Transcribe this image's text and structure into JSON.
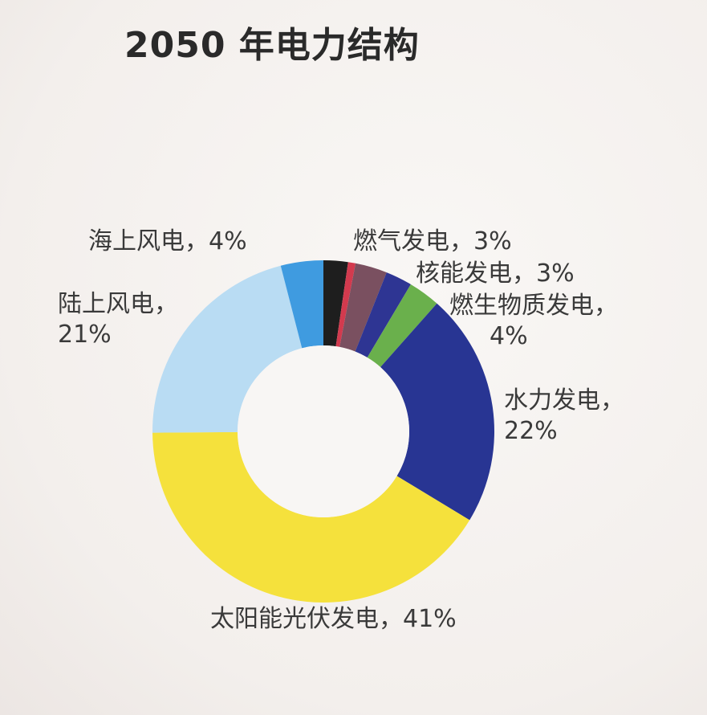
{
  "chart_data": {
    "type": "pie",
    "title": "2050 年电力结构",
    "slices": [
      {
        "key": "gas",
        "name": "燃气发电",
        "value": 3,
        "label_line1": "燃气发电，3%",
        "label_line2": "",
        "color": "#d23a4e"
      },
      {
        "key": "nuclear",
        "name": "核能发电",
        "value": 3,
        "label_line1": "核能发电，3%",
        "label_line2": "",
        "color": "#7a5060"
      },
      {
        "key": "biomass",
        "name": "燃生物质发电",
        "value": 4,
        "label_line1": "燃生物质发电，",
        "label_line2": "4%",
        "color": "#2e3593"
      },
      {
        "key": "hydro",
        "name": "水力发电",
        "value": 22,
        "label_line1": "水力发电，",
        "label_line2": "22%",
        "color": "#283593"
      },
      {
        "key": "solar",
        "name": "太阳能光伏发电",
        "value": 41,
        "label_line1": "太阳能光伏发电，41%",
        "label_line2": "",
        "color": "#f5e13c"
      },
      {
        "key": "onshore",
        "name": "陆上风电",
        "value": 21,
        "label_line1": "陆上风电，",
        "label_line2": "21%",
        "color": "#b9dcf3"
      },
      {
        "key": "offshore",
        "name": "海上风电",
        "value": 4,
        "label_line1": "海上风电，4%",
        "label_line2": "",
        "color": "#3f9be0"
      }
    ],
    "extra_segments_colors": {
      "black": "#1e1e1e",
      "green": "#6ab04c"
    }
  }
}
